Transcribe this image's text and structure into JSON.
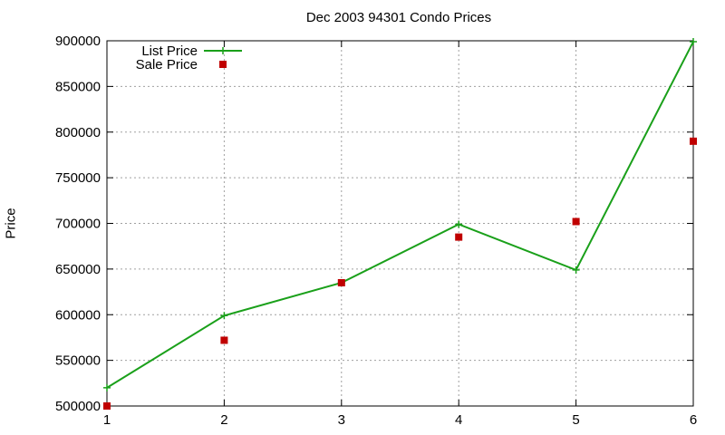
{
  "chart_data": {
    "type": "line",
    "title": "Dec 2003 94301 Condo Prices",
    "xlabel": "",
    "ylabel": "Price",
    "x": [
      1,
      2,
      3,
      4,
      5,
      6
    ],
    "xlim": [
      1,
      6
    ],
    "ylim": [
      500000,
      900000
    ],
    "x_ticks": [
      1,
      2,
      3,
      4,
      5,
      6
    ],
    "y_ticks": [
      500000,
      550000,
      600000,
      650000,
      700000,
      750000,
      800000,
      850000,
      900000
    ],
    "grid": true,
    "legend_position": "top-left",
    "series": [
      {
        "name": "List Price",
        "style": "line-with-markers",
        "marker": "plus",
        "color": "#1aa01a",
        "values": [
          520000,
          599000,
          635000,
          699000,
          649000,
          899000
        ]
      },
      {
        "name": "Sale Price",
        "style": "points",
        "marker": "square",
        "color": "#c00000",
        "values": [
          500000,
          572000,
          635000,
          685000,
          702000,
          790000
        ]
      }
    ]
  }
}
